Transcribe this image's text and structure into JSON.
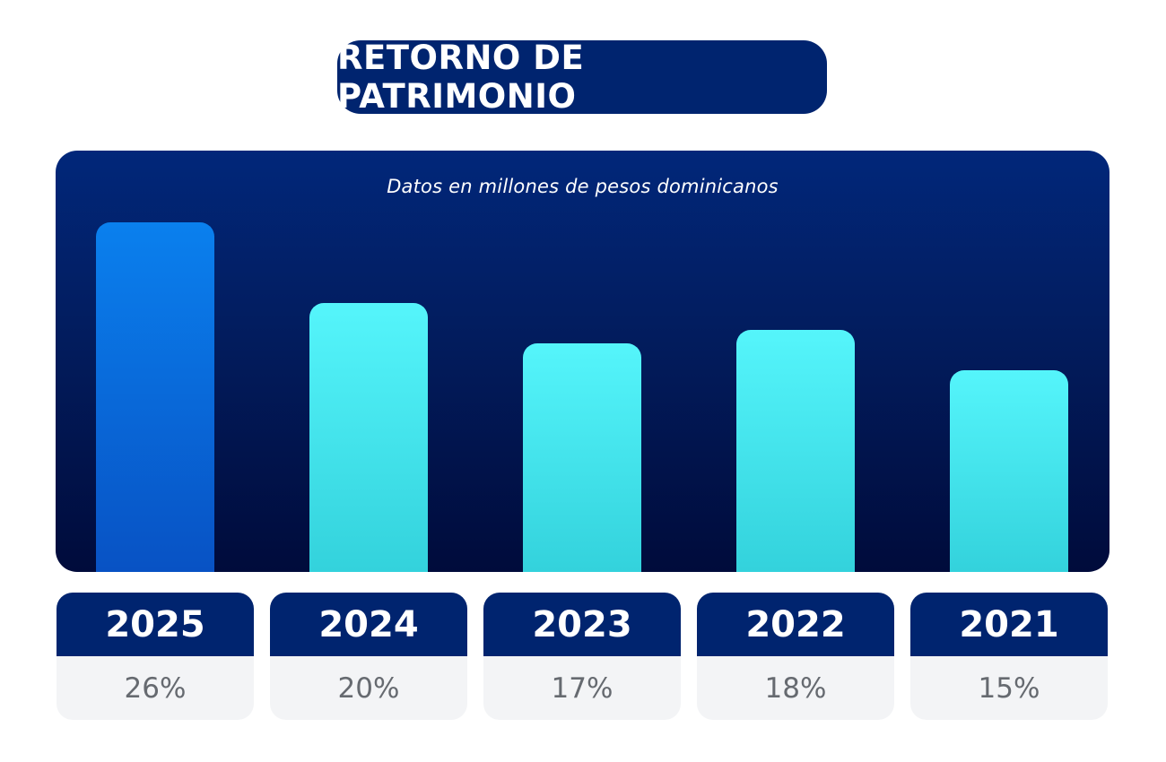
{
  "title": "RETORNO DE PATRIMONIO",
  "subtitle": "Datos en millones de pesos dominicanos",
  "colors": {
    "title_bg": "#00246f",
    "panel_top": "#01277a",
    "panel_bottom": "#000b3b",
    "bar_highlight": "#0a80ee",
    "bar_default": "#55f5fb",
    "card_bottom": "#f3f4f6",
    "value_text": "#666a70"
  },
  "chart_data": {
    "type": "bar",
    "title": "RETORNO DE PATRIMONIO",
    "subtitle": "Datos en millones de pesos dominicanos",
    "categories": [
      "2025",
      "2024",
      "2023",
      "2022",
      "2021"
    ],
    "values": [
      26,
      20,
      17,
      18,
      15
    ],
    "value_labels": [
      "26%",
      "20%",
      "17%",
      "18%",
      "15%"
    ],
    "highlight_index": 0,
    "ylim": [
      0,
      26
    ],
    "grid": false,
    "legend": "none"
  }
}
